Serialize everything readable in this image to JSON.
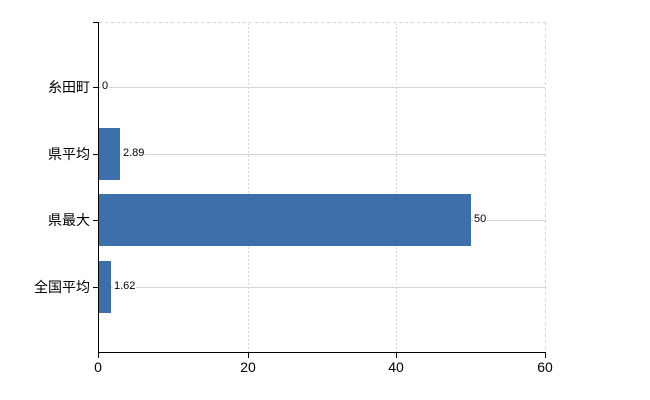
{
  "chart_data": {
    "type": "bar",
    "orientation": "horizontal",
    "title": "",
    "xlabel": "",
    "ylabel": "",
    "categories": [
      "糸田町",
      "県平均",
      "県最大",
      "全国平均"
    ],
    "values": [
      0,
      2.89,
      50,
      1.62
    ],
    "value_labels": [
      "0",
      "2.89",
      "50",
      "1.62"
    ],
    "xlim": [
      0,
      60
    ],
    "x_ticks": [
      0,
      20,
      40,
      60
    ],
    "x_tick_labels": [
      "0",
      "20",
      "40",
      "60"
    ],
    "grid": true,
    "legend": false,
    "colors": {
      "bar": "#3e6fad",
      "h_gridline": "#cfd8cf",
      "v_gridline": "#d6d6d6",
      "dashed_border": "#d9d1d9",
      "axis": "#000000",
      "text": "#000000",
      "background": "#ffffff"
    }
  }
}
